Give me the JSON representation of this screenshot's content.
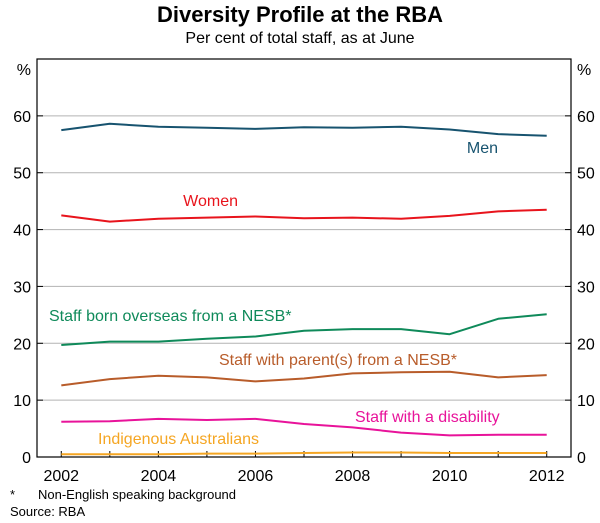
{
  "chart_data": {
    "type": "line",
    "title": "Diversity Profile at the RBA",
    "subtitle": "Per cent of total staff, as at June",
    "ylabel_left": "%",
    "ylabel_right": "%",
    "ylim": [
      0,
      70
    ],
    "yticks": [
      0,
      10,
      20,
      30,
      40,
      50,
      60
    ],
    "xlim": [
      2001.5,
      2012.5
    ],
    "xticks": [
      2002,
      2004,
      2006,
      2008,
      2010,
      2012
    ],
    "grid": true,
    "x": [
      2002,
      2003,
      2004,
      2005,
      2006,
      2007,
      2008,
      2009,
      2010,
      2011,
      2012
    ],
    "series": [
      {
        "name": "Men",
        "color": "#17536f",
        "values": [
          57.5,
          58.6,
          58.1,
          57.9,
          57.7,
          58.0,
          57.9,
          58.1,
          57.6,
          56.8,
          56.5
        ]
      },
      {
        "name": "Women",
        "color": "#e8141c",
        "values": [
          42.5,
          41.4,
          41.9,
          42.1,
          42.3,
          42.0,
          42.1,
          41.9,
          42.4,
          43.2,
          43.5
        ]
      },
      {
        "name": "Staff born overseas from a NESB*",
        "color": "#0f8a5a",
        "values": [
          19.7,
          20.3,
          20.3,
          20.8,
          21.2,
          22.2,
          22.5,
          22.5,
          21.6,
          24.3,
          25.1
        ]
      },
      {
        "name": "Staff with parent(s) from a NESB*",
        "color": "#b85c2a",
        "values": [
          12.6,
          13.7,
          14.3,
          14.0,
          13.3,
          13.8,
          14.7,
          14.9,
          15.0,
          14.0,
          14.4
        ]
      },
      {
        "name": "Staff with a disability",
        "color": "#e8139a",
        "values": [
          6.2,
          6.3,
          6.7,
          6.5,
          6.7,
          5.8,
          5.2,
          4.3,
          3.8,
          3.9,
          3.9
        ]
      },
      {
        "name": "Indigenous Australians",
        "color": "#f5a623",
        "values": [
          0.5,
          0.5,
          0.5,
          0.6,
          0.6,
          0.7,
          0.8,
          0.8,
          0.7,
          0.7,
          0.7
        ]
      }
    ],
    "footnote_mark": "*",
    "footnote": "Non-English speaking background",
    "source": "Source: RBA"
  }
}
